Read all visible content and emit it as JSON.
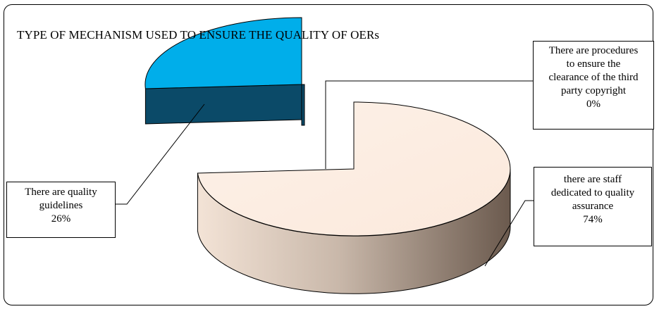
{
  "colors": {
    "staff_top": "#fbe9dc",
    "staff_side_light": "#f3e3d6",
    "staff_side_dark": "#6b5a4e",
    "guidelines_top": "#00aeea",
    "guidelines_side": "#0b4a68",
    "outline": "#000000"
  },
  "chart_data": {
    "type": "pie",
    "title": "TYPE OF MECHANISM USED TO ENSURE THE QUALITY OF OERs",
    "slices": [
      {
        "label": "There are procedures to ensure the clearance of the third party copyright",
        "value": 0,
        "display": "0%"
      },
      {
        "label": "there are staff dedicated to quality assurance",
        "value": 74,
        "display": "74%"
      },
      {
        "label": "There are quality guidelines",
        "value": 26,
        "display": "26%"
      }
    ],
    "callouts": [
      {
        "lines": [
          "There are procedures",
          "to ensure the",
          "clearance of the third",
          "party copyright",
          "0%"
        ]
      },
      {
        "lines": [
          "there are staff",
          "dedicated to quality",
          "assurance",
          "74%"
        ]
      },
      {
        "lines": [
          "There are quality",
          "guidelines",
          "26%"
        ]
      }
    ],
    "style": "3d-exploded"
  }
}
